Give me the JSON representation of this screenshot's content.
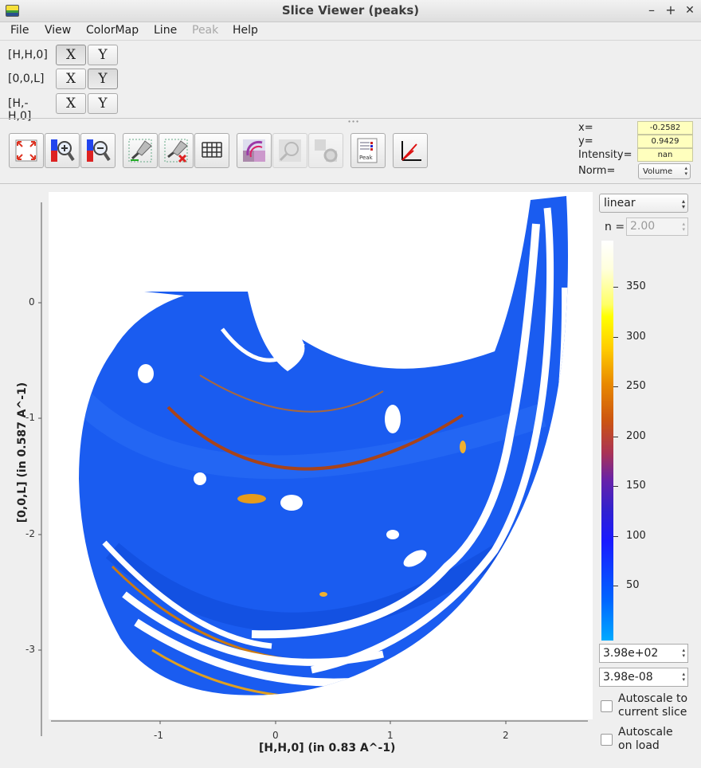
{
  "window": {
    "title": "Slice Viewer (peaks)",
    "minimize": "–",
    "maximize": "+",
    "close": "✕"
  },
  "menu": [
    "File",
    "View",
    "ColorMap",
    "Line",
    "Peak",
    "Help"
  ],
  "dimensions": [
    {
      "label": "[H,H,0]",
      "x": "X",
      "y": "Y"
    },
    {
      "label": "[0,0,L]",
      "x": "X",
      "y": "Y"
    },
    {
      "label": "[H,-H,0]",
      "x": "X",
      "y": "Y"
    }
  ],
  "toolbar": {
    "tools": [
      "zoom-to-fit-icon",
      "zoom-in-icon",
      "zoom-out-icon",
      "draw-line-icon",
      "clear-line-icon",
      "grid-icon",
      "rebin-icon",
      "snap-icon",
      "refresh-icon",
      "peak-overlay-icon",
      "nonorthogonal-axes-icon"
    ],
    "peak_label": "Peak"
  },
  "readout": {
    "x_label": "x=",
    "x": "-0.2582",
    "y_label": "y=",
    "y": "0.9429",
    "intensity_label": "Intensity=",
    "intensity": "nan",
    "norm_label": "Norm=",
    "norm": "Volume"
  },
  "plot": {
    "x_ticks": [
      "-1",
      "0",
      "1",
      "2"
    ],
    "y_ticks": [
      "0",
      "-1",
      "-2",
      "-3"
    ],
    "xlabel": "[H,H,0] (in 0.83 A^-1)",
    "ylabel": "[0,0,L] (in 0.587 A^-1)",
    "xlim": [
      -1.9,
      2.75
    ],
    "ylim": [
      -3.6,
      0.9
    ]
  },
  "colorscale": {
    "mode": "linear",
    "n_label": "n =",
    "n_value": "2.00",
    "ticks": [
      "50",
      "100",
      "150",
      "200",
      "250",
      "300",
      "350"
    ],
    "max": "3.98e+02",
    "min": "3.98e-08",
    "autoscale_slice": "Autoscale to current slice",
    "autoscale_load": "Autoscale on load",
    "colors": {
      "low": "#00aaff",
      "mid": "#1a1aff",
      "high": "#ffff00",
      "top": "#ffffff"
    }
  }
}
